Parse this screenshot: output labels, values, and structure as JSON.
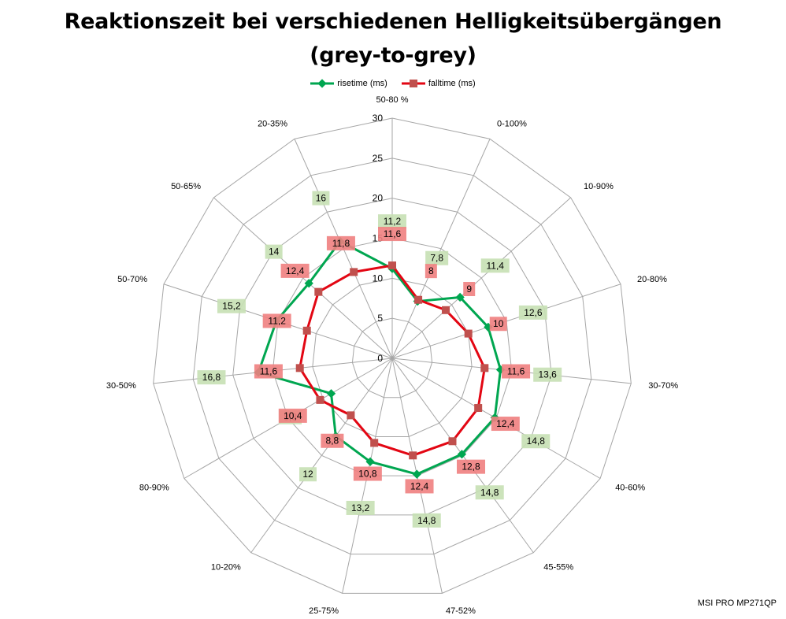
{
  "chart_data": {
    "type": "radar",
    "title": "Reaktionszeit bei verschiedenen Helligkeitsübergängen",
    "subtitle": "(grey-to-grey)",
    "categories": [
      "50-80 %",
      "0-100%",
      "10-90%",
      "20-80%",
      "30-70%",
      "40-60%",
      "45-55%",
      "47-52%",
      "25-75%",
      "10-20%",
      "80-90%",
      "30-50%",
      "50-70%",
      "50-65%",
      "20-35%"
    ],
    "rlim": [
      0,
      30
    ],
    "ticks": [
      0,
      5,
      10,
      15,
      20,
      25,
      30
    ],
    "grid": true,
    "legend_position": "top",
    "series": [
      {
        "name": "risetime (ms)",
        "color": "#00A650",
        "label_bg": "#C6E0B4",
        "values": [
          11.2,
          7.8,
          11.4,
          12.6,
          13.6,
          14.8,
          14.8,
          14.8,
          13.2,
          12,
          8.8,
          16.8,
          15.2,
          14,
          16
        ],
        "labels": [
          "11,2",
          "7,8",
          "11,4",
          "12,6",
          "13,6",
          "14,8",
          "14,8",
          "14,8",
          "13,2",
          "12",
          "8,8",
          "16,8",
          "15,2",
          "14",
          "16"
        ]
      },
      {
        "name": "falltime (ms)",
        "color": "#E30613",
        "label_bg": "#F08080",
        "values": [
          11.6,
          8,
          9,
          10,
          11.6,
          12.4,
          12.8,
          12.4,
          10.8,
          8.8,
          10.4,
          11.6,
          11.2,
          12.4,
          11.8
        ],
        "labels": [
          "11,6",
          "8",
          "9",
          "10",
          "11,6",
          "12,4",
          "12,8",
          "12,4",
          "10,8",
          "8,8",
          "10,4",
          "11,6",
          "11,2",
          "12,4",
          "11,8"
        ]
      }
    ]
  },
  "watermark": "MSI PRO MP271QP"
}
